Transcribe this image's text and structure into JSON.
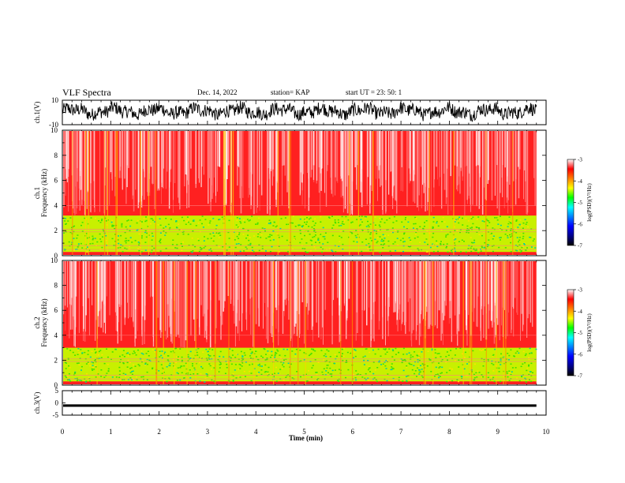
{
  "header": {
    "title": "VLF Spectra",
    "date": "Dec. 14, 2022",
    "station": "station= KAP",
    "start": "start  UT  =   23: 50: 1"
  },
  "colors": {
    "spectrogram": [
      "#000000",
      "#00008b",
      "#0000ff",
      "#0080ff",
      "#00ffff",
      "#00ff00",
      "#ffff00",
      "#ff8000",
      "#ff0000",
      "#ffffff"
    ],
    "background_band": "#ff2020",
    "low_band": "#c8f000"
  },
  "chart_data": [
    {
      "type": "line",
      "ylabel": "ch.1(V)",
      "ylim": [
        -10,
        10
      ],
      "yticks": [
        "10",
        "-10"
      ],
      "xlim": [
        0,
        10
      ],
      "signal": "noisy waveform, approx -6 to +8 V, 0 to 9.8 min"
    },
    {
      "type": "heatmap",
      "ylabel_lines": [
        "ch.1",
        "Frequency  (kHz)"
      ],
      "ylim": [
        0,
        10
      ],
      "yticks": [
        "0",
        "2",
        "4",
        "6",
        "8",
        "10"
      ],
      "xlim": [
        0,
        10
      ],
      "data_extent_x": [
        0,
        9.8
      ],
      "colorbar": {
        "label": "log(PSD)(V²/Hz)",
        "range": [
          -7,
          -3
        ],
        "ticks": [
          "-3",
          "-4",
          "-5",
          "-6",
          "-7"
        ]
      },
      "low_band_khz": [
        0.3,
        3.2
      ]
    },
    {
      "type": "heatmap",
      "ylabel_lines": [
        "ch.2",
        "Frequency  (kHz)"
      ],
      "ylim": [
        0,
        10
      ],
      "yticks": [
        "0",
        "2",
        "4",
        "6",
        "8",
        "10"
      ],
      "xlim": [
        0,
        10
      ],
      "data_extent_x": [
        0,
        9.8
      ],
      "colorbar": {
        "label": "log(PSD)(V²/Hz)",
        "range": [
          -7,
          -3
        ],
        "ticks": [
          "-3",
          "-4",
          "-5",
          "-6",
          "-7"
        ]
      },
      "low_band_khz": [
        0.3,
        3.0
      ]
    },
    {
      "type": "line",
      "ylabel": "ch.3(V)",
      "ylim": [
        -5,
        5
      ],
      "yticks": [
        "5",
        "0",
        "-5"
      ],
      "xlim": [
        0,
        10
      ],
      "signal": "thick band near -1 V, 0 to 9.8 min"
    }
  ],
  "xaxis": {
    "label": "Time  (min)",
    "ticks": [
      "0",
      "1",
      "2",
      "3",
      "4",
      "5",
      "6",
      "7",
      "8",
      "9",
      "10"
    ]
  }
}
